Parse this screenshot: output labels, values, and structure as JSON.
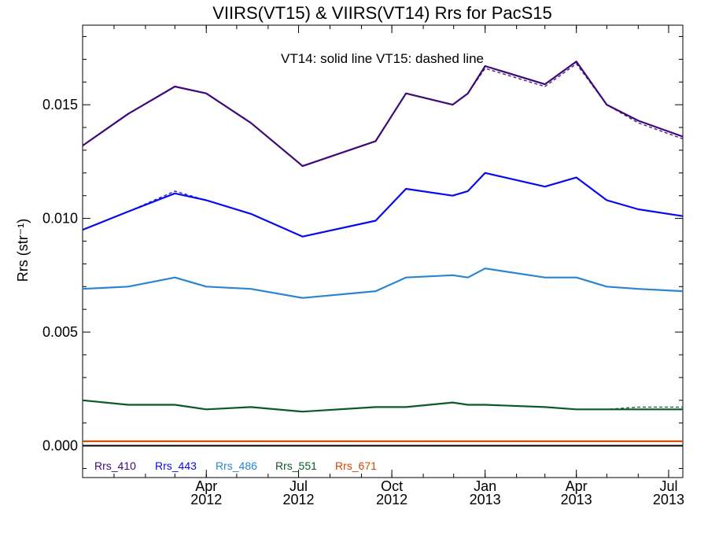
{
  "chart_data": {
    "type": "line",
    "title": "VIIRS(VT15) & VIIRS(VT14)  Rrs for PacS15",
    "subtitle": "VT14: solid line   VT15: dashed line",
    "ylabel": "Rrs (str⁻¹)",
    "ylim": [
      -0.0014,
      0.0185
    ],
    "xlim": [
      "2011-12-01",
      "2013-07-15"
    ],
    "grid": false,
    "legend_position": "bottom-left",
    "x_ticks": [
      {
        "date": "2012-04-01",
        "month": "Apr",
        "year": "2012"
      },
      {
        "date": "2012-07-01",
        "month": "Jul",
        "year": "2012"
      },
      {
        "date": "2012-10-01",
        "month": "Oct",
        "year": "2012"
      },
      {
        "date": "2013-01-01",
        "month": "Jan",
        "year": "2013"
      },
      {
        "date": "2013-04-01",
        "month": "Apr",
        "year": "2013"
      },
      {
        "date": "2013-07-01",
        "month": "Jul",
        "year": "2013"
      }
    ],
    "y_ticks": [
      "0.000",
      "0.005",
      "0.010",
      "0.015"
    ],
    "x": [
      "2011-12-01",
      "2012-01-15",
      "2012-03-01",
      "2012-04-01",
      "2012-05-15",
      "2012-07-05",
      "2012-09-15",
      "2012-10-15",
      "2012-11-30",
      "2012-12-15",
      "2013-01-01",
      "2013-03-01",
      "2013-04-01",
      "2013-05-01",
      "2013-06-01",
      "2013-07-15"
    ],
    "series": [
      {
        "name": "Rrs_410",
        "color": "#3d0a78",
        "values": [
          0.0132,
          0.0146,
          0.0158,
          0.0155,
          0.0142,
          0.0123,
          0.0134,
          0.0155,
          0.015,
          0.0155,
          0.0167,
          0.0159,
          0.0169,
          0.015,
          0.0143,
          0.0136
        ],
        "values_dashed": [
          0.0132,
          0.0146,
          0.0158,
          0.0155,
          0.0142,
          0.0123,
          0.0134,
          0.0155,
          0.015,
          0.0155,
          0.0166,
          0.0158,
          0.0168,
          0.015,
          0.0142,
          0.0135
        ]
      },
      {
        "name": "Rrs_443",
        "color": "#0a0aee",
        "values": [
          0.0095,
          0.0103,
          0.0111,
          0.0108,
          0.0102,
          0.0092,
          0.0099,
          0.0113,
          0.011,
          0.0112,
          0.012,
          0.0114,
          0.0118,
          0.0108,
          0.0104,
          0.0101
        ],
        "values_dashed": [
          0.0095,
          0.0103,
          0.0112,
          0.0108,
          0.0102,
          0.0092,
          0.0099,
          0.0113,
          0.011,
          0.0112,
          0.012,
          0.0114,
          0.0118,
          0.0108,
          0.0104,
          0.0101
        ]
      },
      {
        "name": "Rrs_486",
        "color": "#2a85d0",
        "values": [
          0.0069,
          0.007,
          0.0074,
          0.007,
          0.0069,
          0.0065,
          0.0068,
          0.0074,
          0.0075,
          0.0074,
          0.0078,
          0.0074,
          0.0074,
          0.007,
          0.0069,
          0.0068
        ],
        "values_dashed": [
          0.0069,
          0.007,
          0.0074,
          0.007,
          0.0069,
          0.0065,
          0.0068,
          0.0074,
          0.0075,
          0.0074,
          0.0078,
          0.0074,
          0.0074,
          0.007,
          0.0069,
          0.0068
        ]
      },
      {
        "name": "Rrs_551",
        "color": "#0b5a28",
        "values": [
          0.002,
          0.0018,
          0.0018,
          0.0016,
          0.0017,
          0.0015,
          0.0017,
          0.0017,
          0.0019,
          0.0018,
          0.0018,
          0.0017,
          0.0016,
          0.0016,
          0.0016,
          0.0016
        ],
        "values_dashed": [
          0.002,
          0.0018,
          0.0018,
          0.0016,
          0.0017,
          0.0015,
          0.0017,
          0.0017,
          0.0019,
          0.0018,
          0.0018,
          0.0017,
          0.0016,
          0.0016,
          0.0017,
          0.0017
        ]
      },
      {
        "name": "Rrs_671",
        "color": "#d14400",
        "values": [
          0.0002,
          0.0002,
          0.0002,
          0.0002,
          0.0002,
          0.0002,
          0.0002,
          0.0002,
          0.0002,
          0.0002,
          0.0002,
          0.0002,
          0.0002,
          0.0002,
          0.0002,
          0.0002
        ],
        "values_dashed": [
          0.0002,
          0.0002,
          0.0002,
          0.0002,
          0.0002,
          0.0002,
          0.0002,
          0.0002,
          0.0002,
          0.0002,
          0.0002,
          0.0002,
          0.0002,
          0.0002,
          0.0002,
          0.0002
        ]
      }
    ],
    "reference_line": {
      "y": 0.0,
      "color": "#000000"
    }
  }
}
